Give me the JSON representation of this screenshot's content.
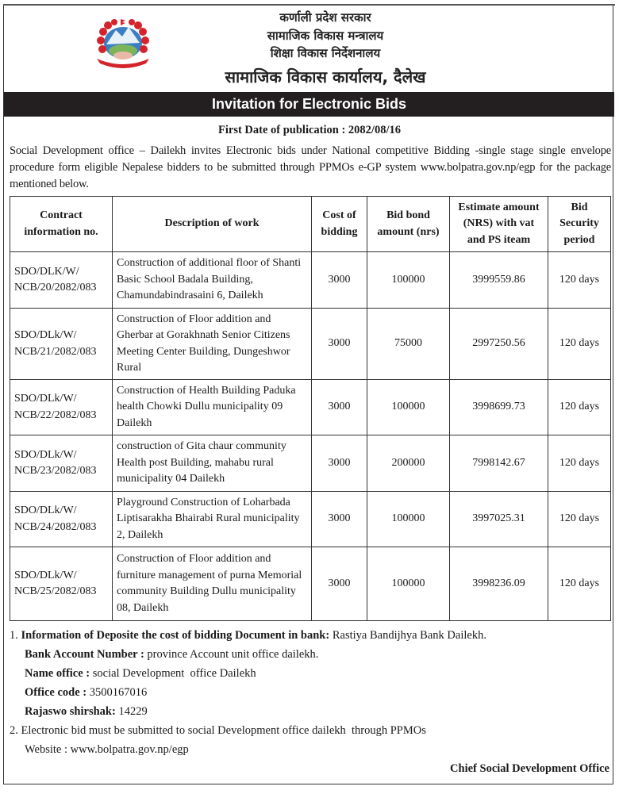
{
  "header": {
    "line1": "कर्णाली प्रदेश सरकार",
    "line2": "सामाजिक विकास मन्त्रालय",
    "line3": "शिक्षा विकास निर्देशनालय",
    "line4": "सामाजिक विकास कार्यालय, दैलेख",
    "logo_icon": "nepal-emblem-icon"
  },
  "title": "Invitation for Electronic Bids",
  "publication": "First Date of publication : 2082/08/16",
  "intro": "Social Development office – Dailekh invites Electronic bids under National competitive Bidding -single stage single envelope procedure form eligible Nepalese bidders to be submitted through PPMOs e-GP system www.bolpatra.gov.np/egp for the package mentioned below.",
  "table": {
    "headers": [
      "Contract information no.",
      "Description of work",
      "Cost of bidding",
      "Bid bond amount (nrs)",
      "Estimate amount (NRS) with vat and PS iteam",
      "Bid Security period"
    ],
    "rows": [
      [
        "SDO/DLK/W/ NCB/20/2082/083",
        "Construction of additional floor of Shanti Basic School Badala Building, Chamundabindrasaini 6, Dailekh",
        "3000",
        "100000",
        "3999559.86",
        "120 days"
      ],
      [
        "SDO/DLk/W/ NCB/21/2082/083",
        "Construction of Floor addition and Gherbar at Gorakhnath Senior Citizens Meeting Center Building, Dungeshwor Rural",
        "3000",
        "75000",
        "2997250.56",
        "120 days"
      ],
      [
        "SDO/DLk/W/ NCB/22/2082/083",
        "Construction of  Health Building Paduka health Chowki Dullu municipality 09 Dailekh",
        "3000",
        "100000",
        "3998699.73",
        "120 days"
      ],
      [
        "SDO/DLk/W/ NCB/23/2082/083",
        "construction of Gita chaur community Health post Building, mahabu rural municipality 04 Dailekh",
        "3000",
        "200000",
        "7998142.67",
        "120 days"
      ],
      [
        "SDO/DLk/W/ NCB/24/2082/083",
        "Playground Construction of Loharbada Liptisarakha Bhairabi Rural municipality 2, Dailekh",
        "3000",
        "100000",
        "3997025.31",
        "120 days"
      ],
      [
        "SDO/DLk/W/ NCB/25/2082/083",
        "Construction of Floor addition and furniture management of purna Memorial community Building Dullu municipality 08, Dailekh",
        "3000",
        "100000",
        "3998236.09",
        "120 days"
      ]
    ]
  },
  "notes": {
    "n1_num": "1.",
    "n1_label": "Information of Deposite the cost of bidding Document in bank:",
    "n1_value": " Rastiya Bandijhya Bank Dailekh.",
    "bank_label": "Bank Account Number :",
    "bank_value": " province Account unit office dailekh.",
    "name_label": "Name office :",
    "name_value": " social Development  office Dailekh",
    "code_label": "Office code :",
    "code_value": " 3500167016",
    "raj_label": "Rajaswo shirshak:",
    "raj_value": " 14229",
    "n2_num": "2.",
    "n2_text": "Electronic bid must be submitted to social Development office dailekh  through PPMOs",
    "website": "Website : www.bolpatra.gov.np/egp"
  },
  "signature": "Chief Social Development Office"
}
